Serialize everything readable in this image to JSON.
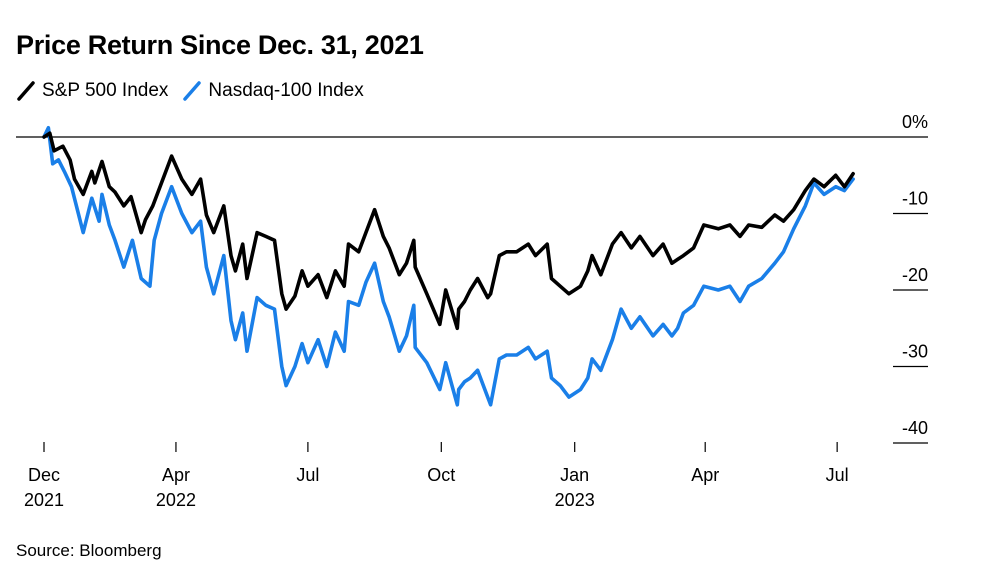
{
  "title": "Price Return Since Dec. 31, 2021",
  "source": "Source: Bloomberg",
  "colors": {
    "sp500": "#000000",
    "nasdaq": "#1a7fe8",
    "zero_line": "#000000",
    "tick": "#000000"
  },
  "chart_data": {
    "type": "line",
    "title": "Price Return Since Dec. 31, 2021",
    "xlabel": "",
    "ylabel": "",
    "ylim": [
      -40,
      0
    ],
    "y_ticks": [
      {
        "value": 0,
        "label": "0%"
      },
      {
        "value": -10,
        "label": "-10"
      },
      {
        "value": -20,
        "label": "-20"
      },
      {
        "value": -30,
        "label": "-30"
      },
      {
        "value": -40,
        "label": "-40"
      }
    ],
    "x_ticks": [
      {
        "value": "2021-12-31",
        "label": "Dec",
        "sub": "2021"
      },
      {
        "value": "2022-04-01",
        "label": "Apr",
        "sub": "2022"
      },
      {
        "value": "2022-07-01",
        "label": "Jul",
        "sub": ""
      },
      {
        "value": "2022-10-01",
        "label": "Oct",
        "sub": ""
      },
      {
        "value": "2023-01-01",
        "label": "Jan",
        "sub": "2023"
      },
      {
        "value": "2023-04-01",
        "label": "Apr",
        "sub": ""
      },
      {
        "value": "2023-07-01",
        "label": "Jul",
        "sub": ""
      }
    ],
    "xlim": [
      "2021-12-31",
      "2023-07-14"
    ],
    "legend_position": "top-left",
    "grid": false,
    "series": [
      {
        "name": "S&P 500 Index",
        "color": "#000000",
        "points": [
          [
            "2021-12-31",
            0
          ],
          [
            "2022-01-04",
            0.5
          ],
          [
            "2022-01-07",
            -1.8
          ],
          [
            "2022-01-13",
            -1.2
          ],
          [
            "2022-01-18",
            -3.0
          ],
          [
            "2022-01-21",
            -5.5
          ],
          [
            "2022-01-27",
            -7.5
          ],
          [
            "2022-02-02",
            -4.5
          ],
          [
            "2022-02-04",
            -6.0
          ],
          [
            "2022-02-09",
            -3.2
          ],
          [
            "2022-02-14",
            -6.5
          ],
          [
            "2022-02-18",
            -7.2
          ],
          [
            "2022-02-24",
            -9.0
          ],
          [
            "2022-03-01",
            -7.8
          ],
          [
            "2022-03-08",
            -12.5
          ],
          [
            "2022-03-11",
            -10.8
          ],
          [
            "2022-03-16",
            -9.0
          ],
          [
            "2022-03-22",
            -6.0
          ],
          [
            "2022-03-29",
            -2.5
          ],
          [
            "2022-04-05",
            -5.5
          ],
          [
            "2022-04-12",
            -7.5
          ],
          [
            "2022-04-18",
            -5.5
          ],
          [
            "2022-04-22",
            -10.2
          ],
          [
            "2022-04-27",
            -12.5
          ],
          [
            "2022-05-04",
            -9.0
          ],
          [
            "2022-05-09",
            -15.5
          ],
          [
            "2022-05-12",
            -17.5
          ],
          [
            "2022-05-17",
            -14.0
          ],
          [
            "2022-05-20",
            -18.5
          ],
          [
            "2022-05-27",
            -12.5
          ],
          [
            "2022-06-02",
            -13.0
          ],
          [
            "2022-06-08",
            -13.5
          ],
          [
            "2022-06-13",
            -20.5
          ],
          [
            "2022-06-16",
            -22.5
          ],
          [
            "2022-06-22",
            -20.8
          ],
          [
            "2022-06-27",
            -17.5
          ],
          [
            "2022-07-01",
            -19.5
          ],
          [
            "2022-07-08",
            -18.0
          ],
          [
            "2022-07-14",
            -21.0
          ],
          [
            "2022-07-20",
            -17.5
          ],
          [
            "2022-07-26",
            -19.5
          ],
          [
            "2022-07-29",
            -14.0
          ],
          [
            "2022-08-05",
            -15.0
          ],
          [
            "2022-08-10",
            -12.5
          ],
          [
            "2022-08-16",
            -9.5
          ],
          [
            "2022-08-22",
            -13.0
          ],
          [
            "2022-08-26",
            -14.5
          ],
          [
            "2022-09-02",
            -18.0
          ],
          [
            "2022-09-07",
            -16.5
          ],
          [
            "2022-09-12",
            -13.5
          ],
          [
            "2022-09-13",
            -17.0
          ],
          [
            "2022-09-21",
            -20.5
          ],
          [
            "2022-09-30",
            -24.5
          ],
          [
            "2022-10-04",
            -20.0
          ],
          [
            "2022-10-12",
            -25.0
          ],
          [
            "2022-10-13",
            -22.5
          ],
          [
            "2022-10-17",
            -21.5
          ],
          [
            "2022-10-21",
            -20.0
          ],
          [
            "2022-10-26",
            -18.5
          ],
          [
            "2022-11-02",
            -21.0
          ],
          [
            "2022-11-04",
            -20.5
          ],
          [
            "2022-11-10",
            -15.5
          ],
          [
            "2022-11-15",
            -15.0
          ],
          [
            "2022-11-22",
            -15.0
          ],
          [
            "2022-11-30",
            -14.0
          ],
          [
            "2022-12-05",
            -15.5
          ],
          [
            "2022-12-13",
            -14.0
          ],
          [
            "2022-12-16",
            -18.5
          ],
          [
            "2022-12-22",
            -19.5
          ],
          [
            "2022-12-28",
            -20.5
          ],
          [
            "2023-01-05",
            -19.5
          ],
          [
            "2023-01-10",
            -17.5
          ],
          [
            "2023-01-13",
            -15.5
          ],
          [
            "2023-01-19",
            -18.0
          ],
          [
            "2023-01-27",
            -14.0
          ],
          [
            "2023-02-02",
            -12.5
          ],
          [
            "2023-02-09",
            -14.5
          ],
          [
            "2023-02-15",
            -13.0
          ],
          [
            "2023-02-24",
            -15.5
          ],
          [
            "2023-03-03",
            -14.0
          ],
          [
            "2023-03-09",
            -16.5
          ],
          [
            "2023-03-13",
            -16.0
          ],
          [
            "2023-03-17",
            -15.5
          ],
          [
            "2023-03-24",
            -14.5
          ],
          [
            "2023-03-31",
            -11.5
          ],
          [
            "2023-04-10",
            -12.0
          ],
          [
            "2023-04-18",
            -11.5
          ],
          [
            "2023-04-25",
            -13.0
          ],
          [
            "2023-05-01",
            -11.5
          ],
          [
            "2023-05-10",
            -11.8
          ],
          [
            "2023-05-19",
            -10.2
          ],
          [
            "2023-05-25",
            -11.0
          ],
          [
            "2023-06-01",
            -9.5
          ],
          [
            "2023-06-09",
            -7.0
          ],
          [
            "2023-06-15",
            -5.5
          ],
          [
            "2023-06-22",
            -6.5
          ],
          [
            "2023-06-30",
            -5.0
          ],
          [
            "2023-07-06",
            -6.5
          ],
          [
            "2023-07-12",
            -4.8
          ]
        ]
      },
      {
        "name": "Nasdaq-100 Index",
        "color": "#1a7fe8",
        "points": [
          [
            "2021-12-31",
            0
          ],
          [
            "2022-01-03",
            1.2
          ],
          [
            "2022-01-06",
            -3.5
          ],
          [
            "2022-01-10",
            -3.0
          ],
          [
            "2022-01-14",
            -4.5
          ],
          [
            "2022-01-19",
            -6.5
          ],
          [
            "2022-01-27",
            -12.5
          ],
          [
            "2022-02-02",
            -8.0
          ],
          [
            "2022-02-07",
            -11.0
          ],
          [
            "2022-02-09",
            -7.5
          ],
          [
            "2022-02-14",
            -11.5
          ],
          [
            "2022-02-18",
            -13.5
          ],
          [
            "2022-02-24",
            -17.0
          ],
          [
            "2022-03-02",
            -13.5
          ],
          [
            "2022-03-08",
            -18.5
          ],
          [
            "2022-03-14",
            -19.5
          ],
          [
            "2022-03-17",
            -13.5
          ],
          [
            "2022-03-22",
            -10.0
          ],
          [
            "2022-03-29",
            -6.5
          ],
          [
            "2022-04-05",
            -10.0
          ],
          [
            "2022-04-12",
            -12.5
          ],
          [
            "2022-04-18",
            -11.0
          ],
          [
            "2022-04-22",
            -17.0
          ],
          [
            "2022-04-27",
            -20.5
          ],
          [
            "2022-05-04",
            -15.5
          ],
          [
            "2022-05-09",
            -24.0
          ],
          [
            "2022-05-12",
            -26.5
          ],
          [
            "2022-05-17",
            -23.0
          ],
          [
            "2022-05-20",
            -28.0
          ],
          [
            "2022-05-27",
            -21.0
          ],
          [
            "2022-06-02",
            -22.0
          ],
          [
            "2022-06-08",
            -22.5
          ],
          [
            "2022-06-13",
            -30.0
          ],
          [
            "2022-06-16",
            -32.5
          ],
          [
            "2022-06-22",
            -30.0
          ],
          [
            "2022-06-27",
            -27.0
          ],
          [
            "2022-07-01",
            -29.5
          ],
          [
            "2022-07-08",
            -26.5
          ],
          [
            "2022-07-14",
            -30.0
          ],
          [
            "2022-07-20",
            -25.5
          ],
          [
            "2022-07-26",
            -28.0
          ],
          [
            "2022-07-29",
            -21.5
          ],
          [
            "2022-08-05",
            -22.0
          ],
          [
            "2022-08-10",
            -19.0
          ],
          [
            "2022-08-16",
            -16.5
          ],
          [
            "2022-08-22",
            -21.5
          ],
          [
            "2022-08-26",
            -23.5
          ],
          [
            "2022-09-02",
            -28.0
          ],
          [
            "2022-09-07",
            -26.0
          ],
          [
            "2022-09-12",
            -22.0
          ],
          [
            "2022-09-13",
            -27.5
          ],
          [
            "2022-09-21",
            -29.5
          ],
          [
            "2022-09-30",
            -33.0
          ],
          [
            "2022-10-04",
            -29.5
          ],
          [
            "2022-10-12",
            -35.0
          ],
          [
            "2022-10-13",
            -33.0
          ],
          [
            "2022-10-17",
            -32.0
          ],
          [
            "2022-10-21",
            -31.5
          ],
          [
            "2022-10-26",
            -30.5
          ],
          [
            "2022-11-02",
            -34.0
          ],
          [
            "2022-11-04",
            -35.0
          ],
          [
            "2022-11-10",
            -29.0
          ],
          [
            "2022-11-15",
            -28.5
          ],
          [
            "2022-11-22",
            -28.5
          ],
          [
            "2022-11-30",
            -27.5
          ],
          [
            "2022-12-05",
            -29.0
          ],
          [
            "2022-12-13",
            -28.0
          ],
          [
            "2022-12-16",
            -31.5
          ],
          [
            "2022-12-22",
            -32.5
          ],
          [
            "2022-12-28",
            -34.0
          ],
          [
            "2023-01-05",
            -33.0
          ],
          [
            "2023-01-10",
            -31.5
          ],
          [
            "2023-01-13",
            -29.0
          ],
          [
            "2023-01-19",
            -30.5
          ],
          [
            "2023-01-27",
            -26.5
          ],
          [
            "2023-02-02",
            -22.5
          ],
          [
            "2023-02-09",
            -25.0
          ],
          [
            "2023-02-15",
            -23.5
          ],
          [
            "2023-02-24",
            -26.0
          ],
          [
            "2023-03-03",
            -24.5
          ],
          [
            "2023-03-09",
            -26.0
          ],
          [
            "2023-03-13",
            -25.0
          ],
          [
            "2023-03-17",
            -23.0
          ],
          [
            "2023-03-24",
            -22.0
          ],
          [
            "2023-03-31",
            -19.5
          ],
          [
            "2023-04-10",
            -20.0
          ],
          [
            "2023-04-18",
            -19.5
          ],
          [
            "2023-04-25",
            -21.5
          ],
          [
            "2023-05-01",
            -19.5
          ],
          [
            "2023-05-10",
            -18.5
          ],
          [
            "2023-05-19",
            -16.5
          ],
          [
            "2023-05-25",
            -15.0
          ],
          [
            "2023-06-01",
            -12.0
          ],
          [
            "2023-06-09",
            -9.0
          ],
          [
            "2023-06-15",
            -6.0
          ],
          [
            "2023-06-22",
            -7.5
          ],
          [
            "2023-06-30",
            -6.5
          ],
          [
            "2023-07-06",
            -7.0
          ],
          [
            "2023-07-12",
            -5.5
          ]
        ]
      }
    ]
  }
}
